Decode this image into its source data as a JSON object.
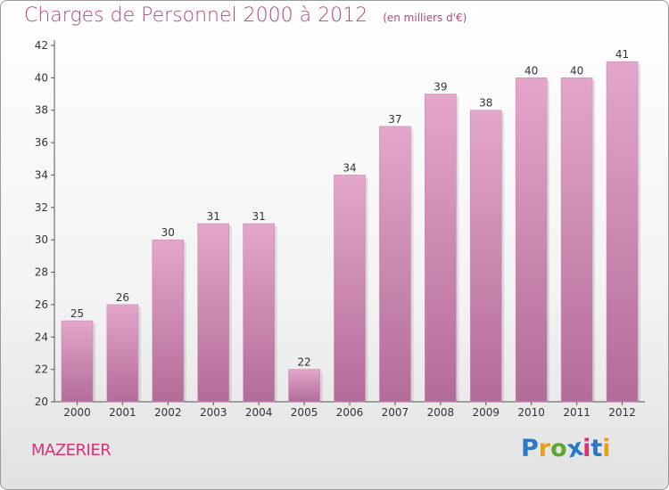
{
  "header": {
    "title": "Charges de Personnel 2000 à 2012",
    "subtitle": "(en milliers d'€)"
  },
  "footer": {
    "commune": "MAZERIER",
    "logo_text": "Proxiti"
  },
  "colors": {
    "title": "#b04a7a",
    "commune": "#d8327a",
    "bar_top": "#e4a6cb",
    "bar_bottom": "#b26c98",
    "logo": [
      "#2a78c6",
      "#e8a21a",
      "#5aa82e",
      "#2a78c6",
      "#d8327a",
      "#2a78c6",
      "#e8a21a"
    ]
  },
  "chart_data": {
    "type": "bar",
    "title": "Charges de Personnel 2000 à 2012",
    "subtitle": "(en milliers d'€)",
    "xlabel": "",
    "ylabel": "",
    "categories": [
      "2000",
      "2001",
      "2002",
      "2003",
      "2004",
      "2005",
      "2006",
      "2007",
      "2008",
      "2009",
      "2010",
      "2011",
      "2012"
    ],
    "values": [
      25,
      26,
      30,
      31,
      31,
      22,
      34,
      37,
      39,
      38,
      40,
      40,
      41
    ],
    "ylim": [
      20,
      42
    ],
    "yticks": [
      20,
      22,
      24,
      26,
      28,
      30,
      32,
      34,
      36,
      38,
      40,
      42
    ],
    "data_labels": true,
    "grid": false,
    "legend": "none"
  }
}
